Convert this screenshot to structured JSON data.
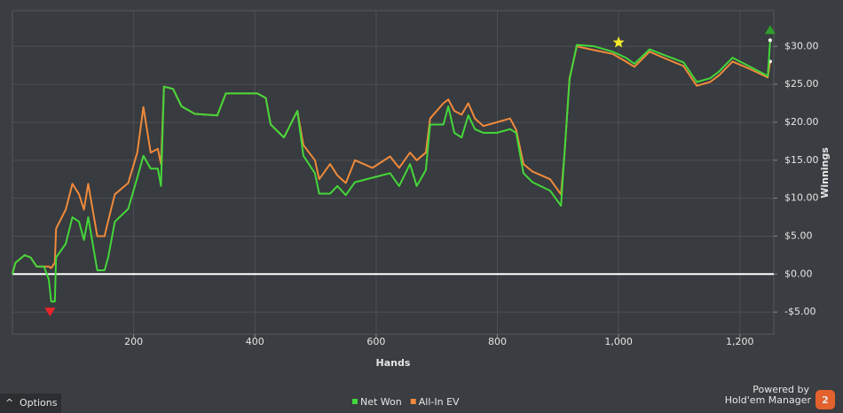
{
  "chart_data": {
    "type": "line",
    "x_label": "Hands",
    "y_label": "Winnings",
    "x": [
      0,
      5,
      20,
      30,
      40,
      52,
      60,
      64,
      70,
      72,
      88,
      99,
      110,
      118,
      125,
      140,
      152,
      158,
      169,
      191,
      206,
      216,
      228,
      240,
      245,
      250,
      265,
      279,
      301,
      338,
      352,
      404,
      418,
      426,
      448,
      470,
      480,
      499,
      506,
      524,
      536,
      550,
      565,
      594,
      623,
      638,
      656,
      667,
      682,
      689,
      711,
      719,
      729,
      741,
      752,
      763,
      777,
      799,
      821,
      831,
      843,
      858,
      887,
      905,
      911,
      919,
      931,
      960,
      990,
      1012,
      1026,
      1051,
      1077,
      1107,
      1129,
      1151,
      1166,
      1188,
      1217,
      1246,
      1250
    ],
    "series": [
      {
        "name": "Net Won",
        "color": "#44d63a",
        "values": [
          0,
          1.5,
          2.5,
          2.2,
          1,
          1,
          -0.7,
          -3.6,
          -3.6,
          2.2,
          4,
          7.5,
          6.9,
          4.5,
          7.5,
          0.5,
          0.5,
          2.2,
          6.9,
          8.6,
          12.7,
          15.6,
          13.9,
          13.9,
          11.6,
          24.7,
          24.4,
          22.1,
          21.1,
          20.9,
          23.8,
          23.8,
          23.2,
          19.7,
          18,
          21.5,
          15.6,
          13.3,
          10.6,
          10.6,
          11.6,
          10.4,
          12.1,
          12.7,
          13.3,
          11.6,
          14.5,
          11.6,
          13.7,
          19.7,
          19.7,
          22.1,
          18.6,
          18,
          20.9,
          19.1,
          18.6,
          18.6,
          19.1,
          18.6,
          13.3,
          12.1,
          11,
          9,
          16.2,
          25.6,
          30.2,
          30,
          29.3,
          28.5,
          27.7,
          29.6,
          28.8,
          27.9,
          25.3,
          25.8,
          26.7,
          28.5,
          27.3,
          26.1,
          30.8
        ]
      },
      {
        "name": "All-In EV",
        "color": "#f08a3c",
        "values": [
          0,
          1.5,
          2.5,
          2.2,
          1,
          1,
          1,
          0.8,
          1.5,
          6,
          8.5,
          11.9,
          10.5,
          8.5,
          11.9,
          5,
          5,
          7,
          10.5,
          12,
          16,
          22,
          16,
          16.5,
          14.5,
          24.7,
          24.4,
          22.1,
          21.1,
          20.9,
          23.8,
          23.8,
          23.2,
          19.7,
          18,
          21.5,
          17,
          15,
          12.5,
          14.5,
          13,
          12,
          15,
          14,
          15.5,
          14,
          16,
          15,
          16,
          20.5,
          22.5,
          23,
          21.5,
          21,
          22.5,
          20.5,
          19.5,
          20,
          20.5,
          19,
          14.5,
          13.5,
          12.5,
          10.5,
          16,
          25.8,
          30,
          29.5,
          29,
          28,
          27.3,
          29.3,
          28.4,
          27.4,
          24.8,
          25.3,
          26.2,
          28,
          27,
          25.9,
          28
        ]
      }
    ],
    "markers": [
      {
        "shape": "down",
        "color": "#e8242a",
        "x": 62,
        "y": -5
      },
      {
        "shape": "star",
        "color": "#f5e92a",
        "x": 1000,
        "y": 30.5
      },
      {
        "shape": "up",
        "color": "#2f9e2a",
        "x": 1250,
        "y": 32.2
      }
    ],
    "xlim": [
      0,
      1256
    ],
    "ylim": [
      -7.9,
      34.7
    ],
    "xticks": [
      200,
      400,
      600,
      800,
      {
        "value": 1000,
        "label": "1,000"
      },
      {
        "value": 1200,
        "label": "1,200"
      }
    ],
    "yticks": [
      {
        "value": -5,
        "label": "-$5.00"
      },
      {
        "value": 0,
        "label": "$0.00"
      },
      {
        "value": 5,
        "label": "$5.00"
      },
      {
        "value": 10,
        "label": "$10.00"
      },
      {
        "value": 15,
        "label": "$15.00"
      },
      {
        "value": 20,
        "label": "$20.00"
      },
      {
        "value": 25,
        "label": "$25.00"
      },
      {
        "value": 30,
        "label": "$30.00"
      }
    ],
    "grid": true,
    "zero_line": true
  },
  "ui": {
    "options": "Options",
    "powered_by": "Powered by",
    "brand": "Hold'em Manager",
    "brand_number": "2"
  }
}
